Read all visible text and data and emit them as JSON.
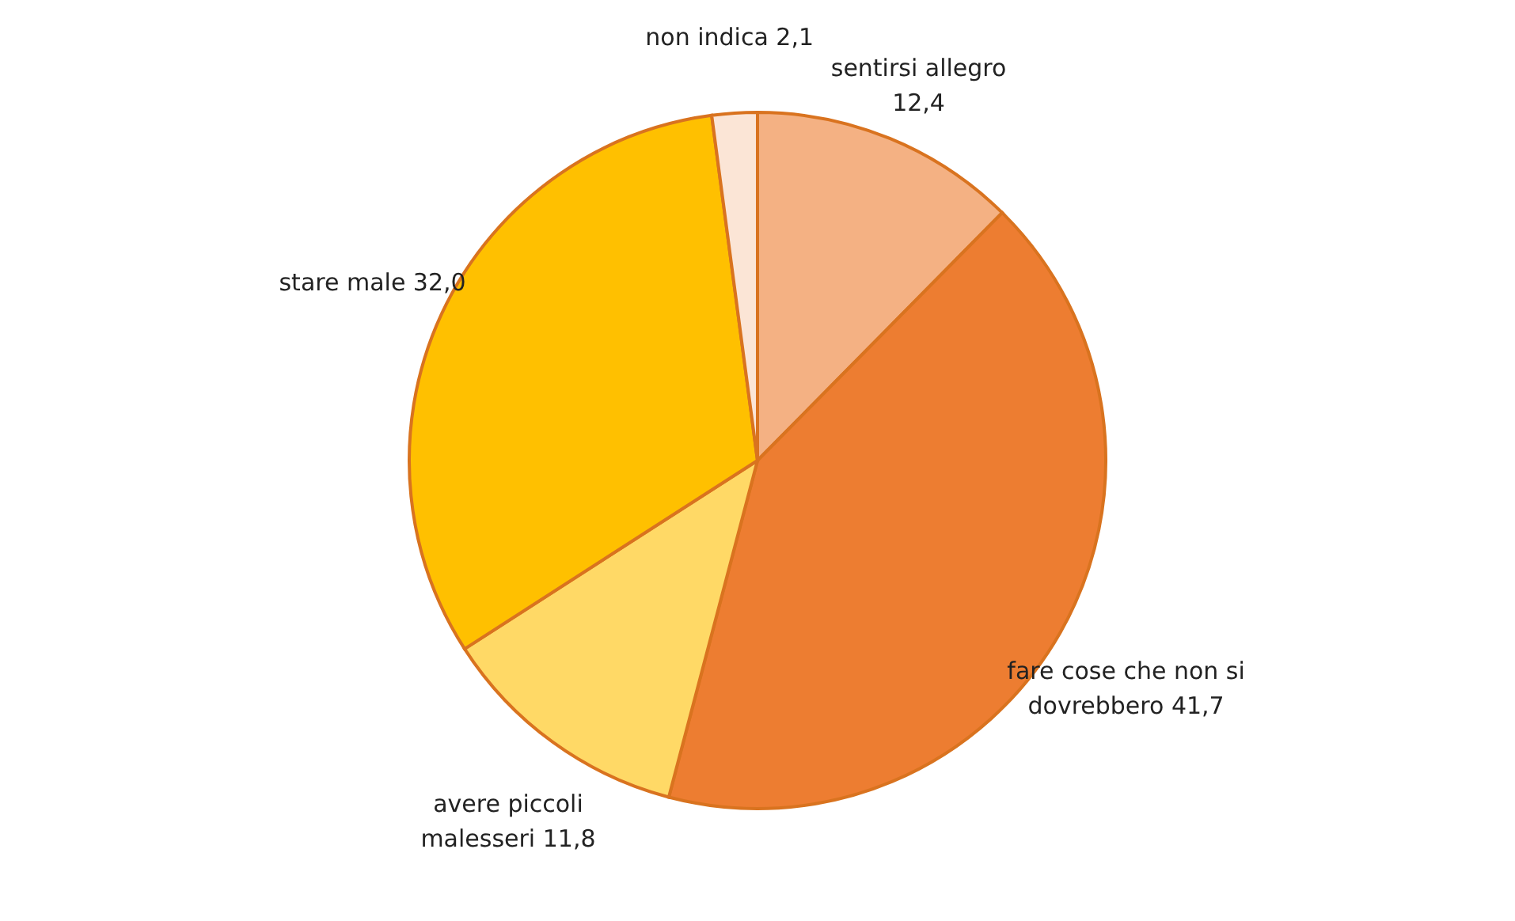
{
  "chart_data": {
    "type": "pie",
    "categories": [
      "sentirsi allegro",
      "fare cose che non si dovrebbero",
      "avere piccoli malesseri",
      "stare male",
      "non indica"
    ],
    "values": [
      12.4,
      41.7,
      11.8,
      32.0,
      2.1
    ],
    "value_labels": [
      "12,4",
      "41,7",
      "11,8",
      "32,0",
      "2,1"
    ],
    "colors": [
      "#f4b183",
      "#ed7d31",
      "#ffd966",
      "#ffc000",
      "#fbe5d6"
    ]
  }
}
